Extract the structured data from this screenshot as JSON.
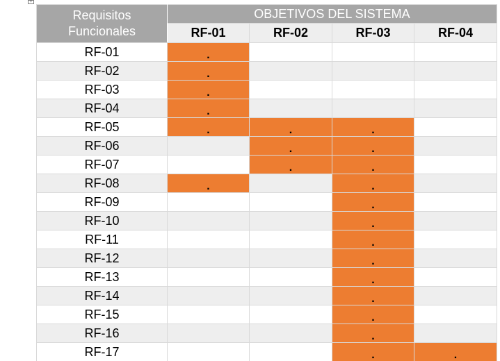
{
  "table": {
    "corner_line1": "Requisitos",
    "corner_line2": "Funcionales",
    "group_header": "OBJETIVOS DEL SISTEMA",
    "columns": [
      "RF-01",
      "RF-02",
      "RF-03",
      "RF-04"
    ],
    "mark_symbol": ".",
    "highlight_color": "#ed7d31",
    "header_color": "#a6a6a6",
    "rows": [
      {
        "label": "RF-01",
        "marks": [
          true,
          false,
          false,
          false
        ]
      },
      {
        "label": "RF-02",
        "marks": [
          true,
          false,
          false,
          false
        ]
      },
      {
        "label": "RF-03",
        "marks": [
          true,
          false,
          false,
          false
        ]
      },
      {
        "label": "RF-04",
        "marks": [
          true,
          false,
          false,
          false
        ]
      },
      {
        "label": "RF-05",
        "marks": [
          true,
          true,
          true,
          false
        ]
      },
      {
        "label": "RF-06",
        "marks": [
          false,
          true,
          true,
          false
        ]
      },
      {
        "label": "RF-07",
        "marks": [
          false,
          true,
          true,
          false
        ]
      },
      {
        "label": "RF-08",
        "marks": [
          true,
          false,
          true,
          false
        ]
      },
      {
        "label": "RF-09",
        "marks": [
          false,
          false,
          true,
          false
        ]
      },
      {
        "label": "RF-10",
        "marks": [
          false,
          false,
          true,
          false
        ]
      },
      {
        "label": "RF-11",
        "marks": [
          false,
          false,
          true,
          false
        ]
      },
      {
        "label": "RF-12",
        "marks": [
          false,
          false,
          true,
          false
        ]
      },
      {
        "label": "RF-13",
        "marks": [
          false,
          false,
          true,
          false
        ]
      },
      {
        "label": "RF-14",
        "marks": [
          false,
          false,
          true,
          false
        ]
      },
      {
        "label": "RF-15",
        "marks": [
          false,
          false,
          true,
          false
        ]
      },
      {
        "label": "RF-16",
        "marks": [
          false,
          false,
          true,
          false
        ]
      },
      {
        "label": "RF-17",
        "marks": [
          false,
          false,
          true,
          true
        ]
      }
    ]
  }
}
